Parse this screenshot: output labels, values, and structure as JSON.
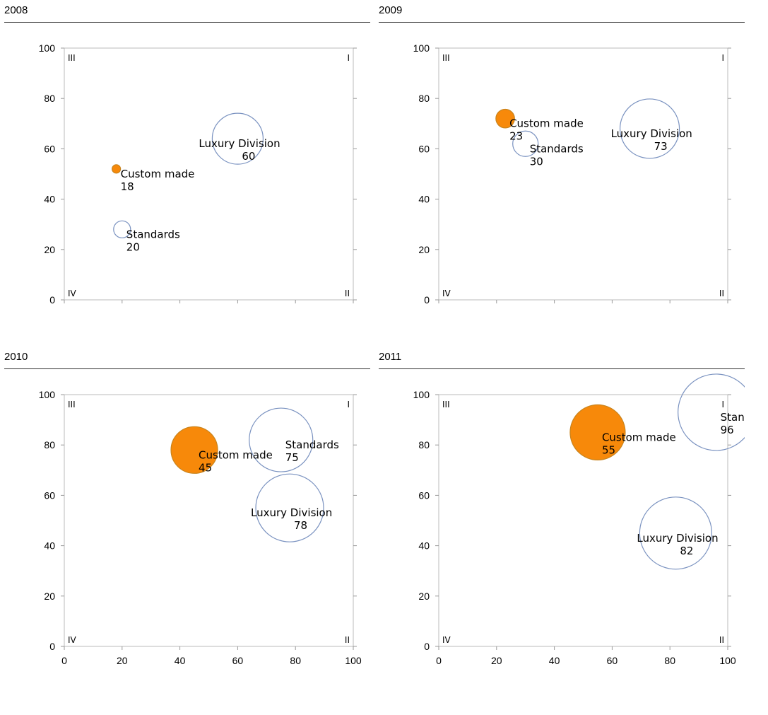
{
  "chart_data": [
    {
      "type": "bubble",
      "title": "2008",
      "xlim": [
        0,
        100
      ],
      "ylim": [
        0,
        100
      ],
      "yticks": [
        0,
        20,
        40,
        60,
        80,
        100
      ],
      "xticks": [
        0,
        20,
        40,
        60,
        80,
        100
      ],
      "show_x_tick_labels": false,
      "quadrants": {
        "top_left": "III",
        "top_right": "I",
        "bottom_left": "IV",
        "bottom_right": "II"
      },
      "points": [
        {
          "name": "Luxury Division",
          "label": "60",
          "x": 60,
          "y": 64,
          "size": 6,
          "filled": false
        },
        {
          "name": "Custom made",
          "label": "18",
          "x": 18,
          "y": 52,
          "size": 1,
          "filled": true
        },
        {
          "name": "Standards",
          "label": "20",
          "x": 20,
          "y": 28,
          "size": 2,
          "filled": false
        }
      ]
    },
    {
      "type": "bubble",
      "title": "2009",
      "xlim": [
        0,
        100
      ],
      "ylim": [
        0,
        100
      ],
      "yticks": [
        0,
        20,
        40,
        60,
        80,
        100
      ],
      "xticks": [
        0,
        20,
        40,
        60,
        80,
        100
      ],
      "show_x_tick_labels": false,
      "quadrants": {
        "top_left": "III",
        "top_right": "I",
        "bottom_left": "IV",
        "bottom_right": "II"
      },
      "points": [
        {
          "name": "Custom made",
          "label": "23",
          "x": 23,
          "y": 72,
          "size": 2.2,
          "filled": true
        },
        {
          "name": "Luxury Division",
          "label": "73",
          "x": 73,
          "y": 68,
          "size": 7,
          "filled": false
        },
        {
          "name": "Standards",
          "label": "30",
          "x": 30,
          "y": 62,
          "size": 3,
          "filled": false
        }
      ]
    },
    {
      "type": "bubble",
      "title": "2010",
      "xlim": [
        0,
        100
      ],
      "ylim": [
        0,
        100
      ],
      "yticks": [
        0,
        20,
        40,
        60,
        80,
        100
      ],
      "xticks": [
        0,
        20,
        40,
        60,
        80,
        100
      ],
      "show_x_tick_labels": true,
      "quadrants": {
        "top_left": "III",
        "top_right": "I",
        "bottom_left": "IV",
        "bottom_right": "II"
      },
      "points": [
        {
          "name": "Custom made",
          "label": "45",
          "x": 45,
          "y": 78,
          "size": 5.5,
          "filled": true
        },
        {
          "name": "Standards",
          "label": "75",
          "x": 75,
          "y": 82,
          "size": 7.5,
          "filled": false
        },
        {
          "name": "Luxury Division",
          "label": "78",
          "x": 78,
          "y": 55,
          "size": 8,
          "filled": false
        }
      ]
    },
    {
      "type": "bubble",
      "title": "2011",
      "xlim": [
        0,
        100
      ],
      "ylim": [
        0,
        100
      ],
      "yticks": [
        0,
        20,
        40,
        60,
        80,
        100
      ],
      "xticks": [
        0,
        20,
        40,
        60,
        80,
        100
      ],
      "show_x_tick_labels": true,
      "quadrants": {
        "top_left": "III",
        "top_right": "I",
        "bottom_left": "IV",
        "bottom_right": "II"
      },
      "points": [
        {
          "name": "Custom made",
          "label": "55",
          "x": 55,
          "y": 85,
          "size": 6.5,
          "filled": true
        },
        {
          "name": "Standards",
          "label": "96",
          "x": 96,
          "y": 93,
          "size": 9,
          "filled": false
        },
        {
          "name": "Luxury Division",
          "label": "82",
          "x": 82,
          "y": 45,
          "size": 8.5,
          "filled": false
        }
      ]
    }
  ],
  "colors": {
    "filled_bubble": "#f7890a",
    "filled_bubble_stroke": "#c8841e",
    "open_bubble_stroke": "#7a92c0",
    "axis": "#bbbbbb",
    "tick": "#999999"
  }
}
